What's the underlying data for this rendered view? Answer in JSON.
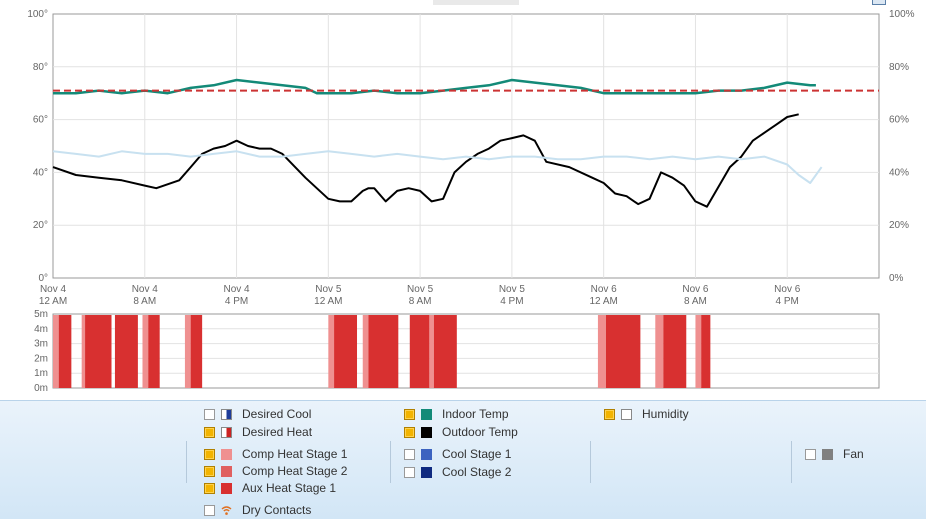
{
  "chart_data": [
    {
      "type": "line",
      "x_ticks": [
        "Nov 4\n12 AM",
        "Nov 4\n8 AM",
        "Nov 4\n4 PM",
        "Nov 5\n12 AM",
        "Nov 5\n8 AM",
        "Nov 5\n4 PM",
        "Nov 6\n12 AM",
        "Nov 6\n8 AM",
        "Nov 6\n4 PM"
      ],
      "x_tick_hours": [
        0,
        8,
        16,
        24,
        32,
        40,
        48,
        56,
        64
      ],
      "xlim_hours": [
        0,
        72
      ],
      "ylim": [
        0,
        100
      ],
      "y_ticks": [
        "0°",
        "20°",
        "40°",
        "60°",
        "80°",
        "100°"
      ],
      "y_ticks_right": [
        "0%",
        "20%",
        "40%",
        "60%",
        "80%",
        "100%"
      ],
      "grid": true,
      "series": [
        {
          "name": "Indoor Temp",
          "color": "#138a78",
          "axis": "left",
          "x": [
            0,
            2,
            4,
            6,
            8,
            10,
            12,
            14,
            16,
            18,
            20,
            22,
            23,
            24,
            26,
            28,
            30,
            32,
            34,
            36,
            38,
            40,
            42,
            44,
            46,
            48,
            50,
            52,
            54,
            56,
            58,
            60,
            62,
            64,
            66,
            66.5
          ],
          "y": [
            70,
            70,
            71,
            70,
            71,
            70,
            72,
            73,
            75,
            74,
            73,
            72,
            70,
            70,
            70,
            71,
            70,
            70,
            71,
            72,
            73,
            75,
            74,
            73,
            72,
            70,
            70,
            70,
            70,
            70,
            71,
            71,
            72,
            74,
            73,
            73
          ]
        },
        {
          "name": "Outdoor Temp",
          "color": "#000000",
          "axis": "left",
          "x": [
            0,
            2,
            4,
            6,
            8,
            9,
            11,
            12,
            13,
            14,
            15,
            16,
            17,
            18,
            19,
            20,
            22,
            24,
            25,
            26,
            27,
            27.5,
            28,
            29,
            30,
            31,
            32,
            33,
            34,
            35,
            36,
            37,
            38,
            39,
            40,
            41,
            42,
            43,
            45,
            47,
            48,
            49,
            50,
            51,
            52,
            53,
            54,
            55,
            56,
            57,
            59,
            60,
            61,
            62,
            63,
            64,
            65
          ],
          "y": [
            42,
            39,
            38,
            37,
            35,
            34,
            37,
            42,
            47,
            49,
            50,
            52,
            50,
            49,
            49,
            47,
            38,
            30,
            29,
            29,
            33,
            34,
            34,
            29,
            33,
            34,
            33,
            29,
            30,
            40,
            44,
            47,
            49,
            52,
            53,
            54,
            52,
            44,
            42,
            38,
            36,
            32,
            31,
            28,
            30,
            40,
            38,
            35,
            29,
            27,
            42,
            46,
            52,
            55,
            58,
            61,
            62
          ]
        },
        {
          "name": "Humidity",
          "color": "#c8e1f0",
          "axis": "right",
          "x": [
            0,
            2,
            4,
            6,
            8,
            10,
            12,
            14,
            16,
            18,
            20,
            22,
            24,
            26,
            28,
            30,
            32,
            34,
            36,
            38,
            40,
            42,
            44,
            46,
            48,
            50,
            52,
            54,
            56,
            58,
            60,
            62,
            64,
            65,
            66,
            67
          ],
          "y": [
            48,
            47,
            46,
            48,
            47,
            47,
            46,
            47,
            48,
            46,
            46,
            47,
            48,
            47,
            46,
            47,
            46,
            45,
            46,
            45,
            46,
            46,
            45,
            45,
            46,
            46,
            45,
            46,
            45,
            46,
            45,
            46,
            43,
            39,
            36,
            42
          ]
        },
        {
          "name": "Desired Heat",
          "color": "#cc3333",
          "dashed": true,
          "axis": "left",
          "x": [
            0,
            72
          ],
          "y": [
            71,
            71
          ]
        }
      ]
    },
    {
      "type": "bar",
      "name": "runtime",
      "y_ticks": [
        "0m",
        "1m",
        "2m",
        "3m",
        "4m",
        "5m"
      ],
      "ylim": [
        0,
        5
      ],
      "xlim_hours": [
        0,
        72
      ],
      "series": [
        {
          "name": "Comp Heat Stage 1",
          "color": "#ef9090",
          "intervals": [
            [
              0,
              0.5
            ],
            [
              2.5,
              3
            ],
            [
              7.8,
              8.3
            ],
            [
              11.5,
              12
            ],
            [
              24,
              24.5
            ],
            [
              27,
              27.5
            ],
            [
              32.8,
              33.2
            ],
            [
              47.5,
              48.2
            ],
            [
              52.5,
              53.2
            ],
            [
              56,
              56.5
            ]
          ]
        },
        {
          "name": "Aux Heat Stage 1",
          "color": "#d83030",
          "intervals": [
            [
              0.5,
              1.6
            ],
            [
              2.8,
              5.1
            ],
            [
              5.4,
              7.4
            ],
            [
              8.3,
              9.3
            ],
            [
              12,
              13
            ],
            [
              24.5,
              26.5
            ],
            [
              27.5,
              30.1
            ],
            [
              31.1,
              32.8
            ],
            [
              33.2,
              35.2
            ],
            [
              48.2,
              51.2
            ],
            [
              53.2,
              55.2
            ],
            [
              56.5,
              57.3
            ]
          ]
        }
      ]
    }
  ],
  "legend": {
    "col1": [
      {
        "label": "Desired Cool",
        "checked": false,
        "swatch": "split",
        "color": "#1e3c9a"
      },
      {
        "label": "Desired Heat",
        "checked": true,
        "swatch": "split",
        "color": "#cc2222"
      },
      {
        "label": "Comp Heat Stage 1",
        "checked": true,
        "swatch": "solid",
        "color": "#ef9090"
      },
      {
        "label": "Comp Heat Stage 2",
        "checked": true,
        "swatch": "solid",
        "color": "#e06060"
      },
      {
        "label": "Aux Heat Stage 1",
        "checked": true,
        "swatch": "solid",
        "color": "#d83030"
      },
      {
        "label": "Dry Contacts",
        "checked": false,
        "swatch": "wifi",
        "color": "#e07020"
      }
    ],
    "col2": [
      {
        "label": "Indoor Temp",
        "checked": true,
        "swatch": "solid",
        "color": "#138a78"
      },
      {
        "label": "Outdoor Temp",
        "checked": true,
        "swatch": "solid",
        "color": "#000000"
      },
      {
        "label": "Cool Stage 1",
        "checked": false,
        "swatch": "solid",
        "color": "#3c63c0"
      },
      {
        "label": "Cool Stage 2",
        "checked": false,
        "swatch": "solid",
        "color": "#102a80"
      }
    ],
    "col3": [
      {
        "label": "Humidity",
        "checked": true,
        "swatch": "outline",
        "color": "#888888"
      }
    ],
    "col4": [
      {
        "label": "Fan",
        "checked": false,
        "swatch": "solid",
        "color": "#808080"
      }
    ]
  }
}
